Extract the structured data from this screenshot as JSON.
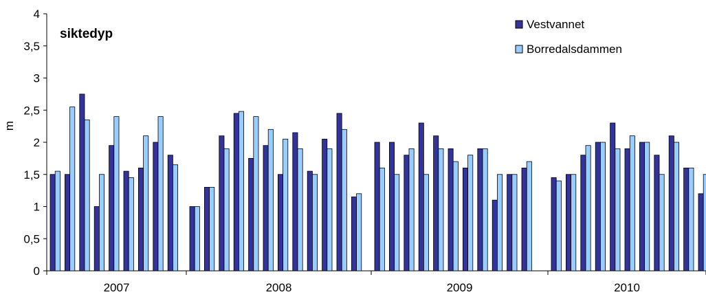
{
  "chart_data": {
    "type": "bar",
    "title": "siktedyp",
    "ylabel": "m",
    "xlabel": "",
    "ylim": [
      0,
      4
    ],
    "yticks": [
      "0",
      "0,5",
      "1",
      "1,5",
      "2",
      "2,5",
      "3",
      "3,5",
      "4"
    ],
    "years": [
      "2007",
      "2008",
      "2009",
      "2010"
    ],
    "legend_position": "top-right",
    "grid": false,
    "colors": {
      "Vestvannet": "#333399",
      "Borredalsdammen": "#99ccff",
      "outline": "#000000"
    },
    "groups": [
      {
        "year": "2007",
        "vestvannet": [
          1.5,
          1.5,
          2.75,
          1.0,
          1.95,
          1.55,
          1.6,
          2.0,
          1.8
        ],
        "borredalsdammen": [
          1.55,
          2.55,
          2.35,
          1.5,
          2.4,
          1.45,
          2.1,
          2.4,
          1.65
        ]
      },
      {
        "year": "2008",
        "vestvannet": [
          1.0,
          1.3,
          2.1,
          2.45,
          1.75,
          1.95,
          1.5,
          2.15,
          1.55,
          2.05,
          2.45,
          1.15
        ],
        "borredalsdammen": [
          1.0,
          1.3,
          1.9,
          2.48,
          2.4,
          2.2,
          2.05,
          1.9,
          1.5,
          1.9,
          2.2,
          1.2
        ]
      },
      {
        "year": "2009",
        "vestvannet": [
          2.0,
          2.0,
          1.8,
          2.3,
          2.1,
          1.9,
          1.6,
          1.9,
          1.1,
          1.5,
          1.6
        ],
        "borredalsdammen": [
          1.6,
          1.5,
          1.9,
          1.5,
          1.9,
          1.7,
          1.8,
          1.9,
          1.5,
          1.5,
          1.7
        ]
      },
      {
        "year": "2010",
        "vestvannet": [
          1.45,
          1.5,
          1.8,
          2.0,
          2.3,
          1.9,
          2.0,
          1.8,
          2.1,
          1.6,
          1.2
        ],
        "borredalsdammen": [
          1.4,
          1.5,
          1.95,
          2.0,
          1.9,
          2.1,
          2.0,
          1.5,
          2.0,
          1.6,
          1.5
        ]
      }
    ],
    "series": [
      {
        "name": "Vestvannet"
      },
      {
        "name": "Borredalsdammen"
      }
    ]
  }
}
